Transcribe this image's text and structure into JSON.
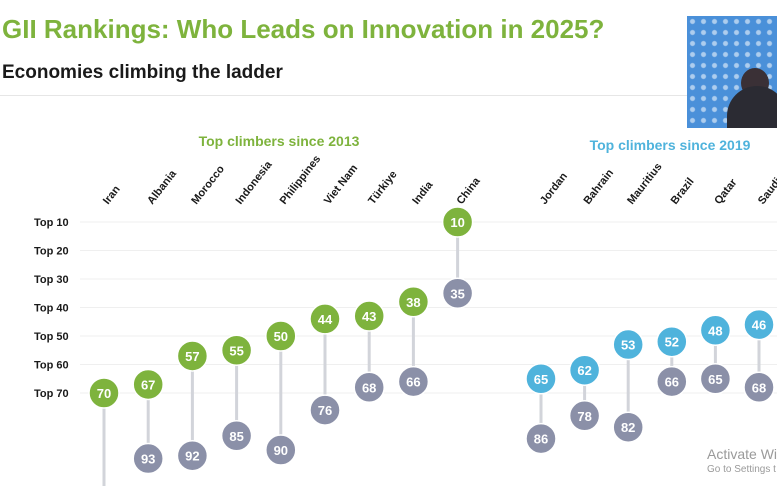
{
  "title": "GII Rankings: Who Leads on Innovation in 2025?",
  "subtitle": "Economies climbing the ladder",
  "watermark": {
    "line1": "Activate Wi",
    "line2": "Go to Settings t"
  },
  "colors": {
    "title": "#7eb33d",
    "green": "#7eb33d",
    "blue": "#4fb3dc",
    "grey": "#8b90a8",
    "connector": "#d2d4da"
  },
  "chart_data": {
    "type": "dumbbell",
    "y_ticks": [
      "Top 10",
      "Top 20",
      "Top 30",
      "Top 40",
      "Top 50",
      "Top 60",
      "Top 70"
    ],
    "groups": [
      {
        "title": "Top climbers since 2013",
        "color": "#7eb33d",
        "economies": [
          {
            "name": "Iran",
            "rank_2025": 70,
            "rank_before": null
          },
          {
            "name": "Albania",
            "rank_2025": 67,
            "rank_before": 93
          },
          {
            "name": "Morocco",
            "rank_2025": 57,
            "rank_before": 92
          },
          {
            "name": "Indonesia",
            "rank_2025": 55,
            "rank_before": 85
          },
          {
            "name": "Philippines",
            "rank_2025": 50,
            "rank_before": 90
          },
          {
            "name": "Viet Nam",
            "rank_2025": 44,
            "rank_before": 76
          },
          {
            "name": "Türkiye",
            "rank_2025": 43,
            "rank_before": 68
          },
          {
            "name": "India",
            "rank_2025": 38,
            "rank_before": 66
          },
          {
            "name": "China",
            "rank_2025": 10,
            "rank_before": 35
          }
        ]
      },
      {
        "title": "Top climbers since 2019",
        "color": "#4fb3dc",
        "economies": [
          {
            "name": "Jordan",
            "rank_2025": 65,
            "rank_before": 86
          },
          {
            "name": "Bahrain",
            "rank_2025": 62,
            "rank_before": 78
          },
          {
            "name": "Mauritius",
            "rank_2025": 53,
            "rank_before": 82
          },
          {
            "name": "Brazil",
            "rank_2025": 52,
            "rank_before": 66
          },
          {
            "name": "Qatar",
            "rank_2025": 48,
            "rank_before": 65
          },
          {
            "name": "Saudi",
            "rank_2025": 46,
            "rank_before": 68
          }
        ]
      }
    ]
  }
}
